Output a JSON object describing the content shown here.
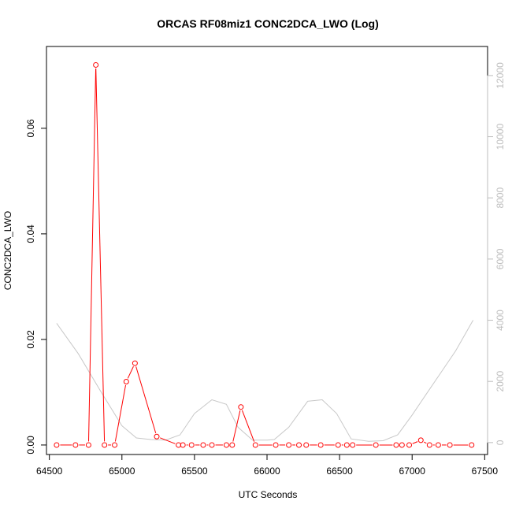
{
  "chart_data": {
    "type": "line",
    "title": "ORCAS RF08miz1 CONC2DCA_LWO (Log)",
    "xlabel": "UTC Seconds",
    "ylabel": "CONC2DCA_LWO",
    "xlim": [
      64480,
      67520
    ],
    "ylim": [
      -0.0018,
      0.0755
    ],
    "y2lim": [
      -390,
      12950
    ],
    "xticks": [
      64500,
      65000,
      65500,
      66000,
      66500,
      67000,
      67500
    ],
    "yticks": [
      0.0,
      0.02,
      0.04,
      0.06
    ],
    "ytick_labels": [
      "0.00",
      "0.02",
      "0.04",
      "0.06"
    ],
    "y2ticks": [
      0,
      2000,
      4000,
      6000,
      8000,
      10000,
      12000
    ],
    "grid": false,
    "series": [
      {
        "color": "#ff0000",
        "axis": "left",
        "marker": "open-circle",
        "x": [
          64550,
          64680,
          64770,
          64820,
          64880,
          64950,
          65030,
          65090,
          65240,
          65390,
          65420,
          65480,
          65560,
          65620,
          65720,
          65760,
          65820,
          65920,
          66060,
          66150,
          66220,
          66270,
          66370,
          66490,
          66550,
          66590,
          66750,
          66890,
          66930,
          66980,
          67060,
          67120,
          67180,
          67260,
          67410
        ],
        "y": [
          0.0,
          0.0,
          0.0,
          0.072,
          0.0,
          0.0,
          0.012,
          0.0155,
          0.0016,
          0.0,
          0.0,
          0.0,
          0.0,
          0.0,
          0.0,
          0.0,
          0.0072,
          0.0,
          0.0,
          0.0,
          0.0,
          0.0,
          0.0,
          0.0,
          0.0,
          0.0,
          0.0,
          0.0,
          0.0,
          0.0,
          0.0009,
          0.0,
          0.0,
          0.0,
          0.0
        ]
      },
      {
        "color": "#c8c8c8",
        "axis": "right",
        "marker": "none",
        "x": [
          64550,
          64700,
          64850,
          65000,
          65100,
          65200,
          65300,
          65400,
          65500,
          65620,
          65720,
          65800,
          65900,
          66000,
          66050,
          66150,
          66280,
          66380,
          66480,
          66580,
          66700,
          66800,
          66900,
          67000,
          67100,
          67200,
          67300,
          67420
        ],
        "y": [
          3900,
          2900,
          1700,
          550,
          150,
          100,
          80,
          250,
          950,
          1400,
          1250,
          500,
          80,
          80,
          100,
          500,
          1350,
          1400,
          950,
          120,
          40,
          60,
          250,
          900,
          1600,
          2300,
          3000,
          4000
        ]
      }
    ]
  }
}
